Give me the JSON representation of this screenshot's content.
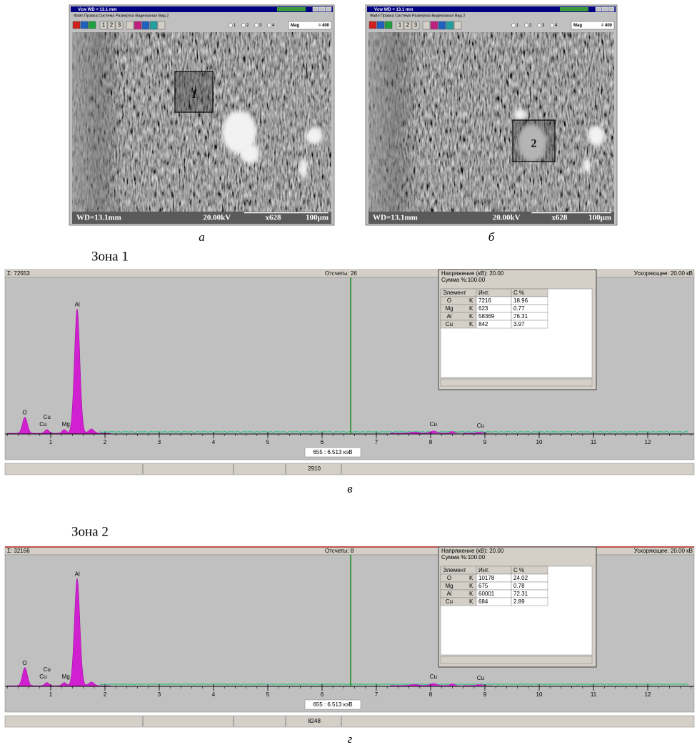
{
  "sem_images": [
    {
      "caption": "а",
      "window_title": "Vcw    WD = 13.1 mm",
      "menu": "Файл   Правка   Система   Развертка   Видеоканал   Вид   2",
      "toolbar_buttons": [
        "1",
        "2",
        "3"
      ],
      "radio": [
        "1",
        "2",
        "3",
        "4"
      ],
      "mag_label": "Mag",
      "mag_value": "= 400",
      "zone_marker": "1",
      "status": [
        "WD=13.1mm",
        "20.00kV",
        "x628",
        "100μm"
      ]
    },
    {
      "caption": "б",
      "window_title": "Vcw    WD = 13.1 mm",
      "menu": "Файл   Правка   Система   Развертка   Видеоканал   Вид   2",
      "toolbar_buttons": [
        "1",
        "2",
        "3"
      ],
      "radio": [
        "1",
        "2",
        "3",
        "4"
      ],
      "mag_label": "Mag",
      "mag_value": "= 400",
      "zone_marker": "2",
      "status": [
        "WD=13.1mm",
        "20.00kV",
        "x628",
        "100μm"
      ]
    }
  ],
  "spectra": [
    {
      "zone_title": "Зона 1",
      "caption": "в",
      "sum": "Σ: 72553",
      "counts": "Отсчеты:  26",
      "voltage_right": "Ускоряющее:  20.00 кВ",
      "cursor": "655 : 6.513 кэВ",
      "status_value": "2910",
      "x_ticks": [
        "1",
        "2",
        "3",
        "4",
        "5",
        "6",
        "7",
        "8",
        "9",
        "10",
        "11",
        "12"
      ],
      "peak_labels": [
        "O",
        "Cu",
        "Cu",
        "Mg",
        "Al",
        "Cu",
        "Cu"
      ],
      "table": {
        "voltage": "Напряжение (кВ): 20.00",
        "sum": "Сумма %:100.00",
        "headers": [
          "Элемент",
          "Инт.",
          "C %"
        ],
        "rows": [
          [
            "O",
            "K",
            "7216",
            "18.96"
          ],
          [
            "Mg",
            "K",
            "623",
            "0.77"
          ],
          [
            "Al",
            "K",
            "58369",
            "76.31"
          ],
          [
            "Cu",
            "K",
            "842",
            "3.97"
          ]
        ]
      }
    },
    {
      "zone_title": "Зона 2",
      "caption": "г",
      "sum": "Σ: 32166",
      "counts": "Отсчеты:  8",
      "voltage_right": "Ускоряющее:  20.00 кВ",
      "cursor": "655 : 6.513 кэВ",
      "status_value": "8248",
      "x_ticks": [
        "1",
        "2",
        "3",
        "4",
        "5",
        "6",
        "7",
        "8",
        "9",
        "10",
        "11",
        "12"
      ],
      "peak_labels": [
        "O",
        "Cu",
        "Cu",
        "Mg",
        "Al",
        "Cu",
        "Cu"
      ],
      "table": {
        "voltage": "Напряжение (кВ): 20.00",
        "sum": "Сумма %:100.00",
        "headers": [
          "Элемент",
          "Инт.",
          "C %"
        ],
        "rows": [
          [
            "O",
            "K",
            "10178",
            "24.02"
          ],
          [
            "Mg",
            "K",
            "675",
            "0.78"
          ],
          [
            "Al",
            "K",
            "60001",
            "72.31"
          ],
          [
            "Cu",
            "K",
            "684",
            "2.89"
          ]
        ]
      }
    }
  ]
}
